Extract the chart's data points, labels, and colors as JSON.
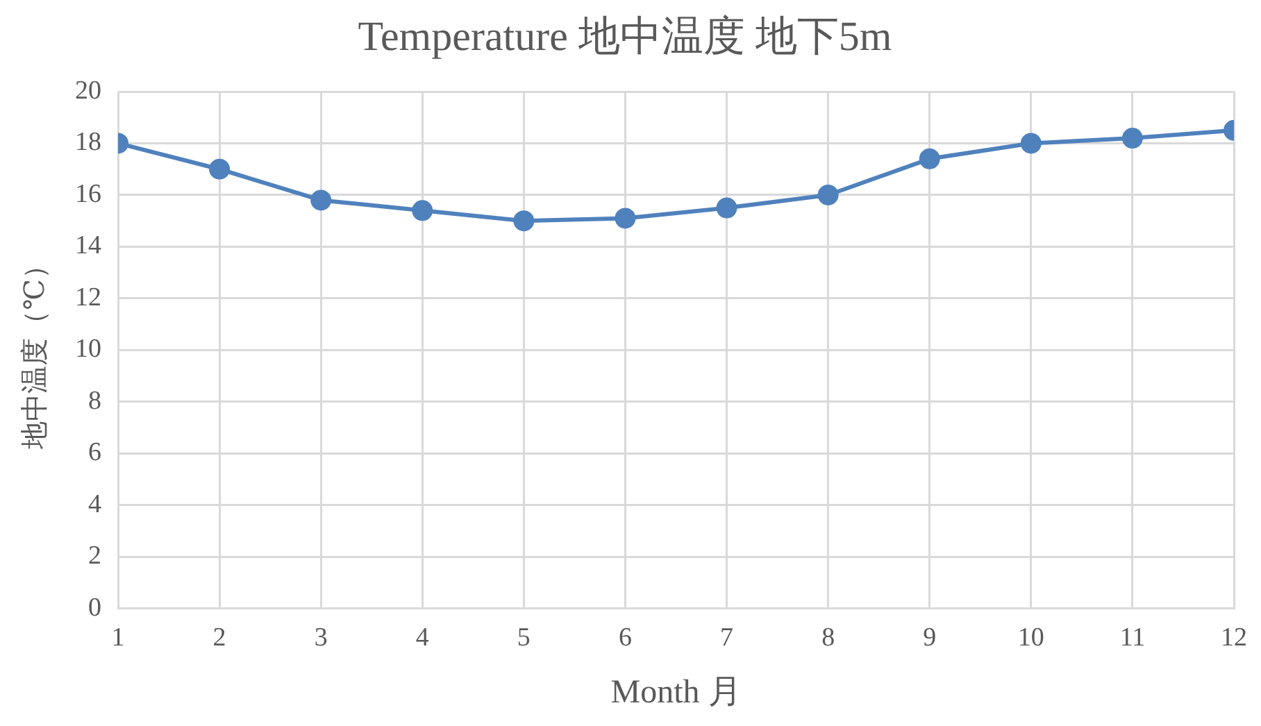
{
  "chart_data": {
    "type": "line",
    "title": "Temperature 地中温度 地下5m",
    "xlabel": "Month 月",
    "ylabel": "地中温度（℃）",
    "x": [
      1,
      2,
      3,
      4,
      5,
      6,
      7,
      8,
      9,
      10,
      11,
      12
    ],
    "series": [
      {
        "color": "#4f81bd",
        "values": [
          18,
          17,
          15.8,
          15.4,
          15.0,
          15.1,
          15.5,
          16.0,
          17.4,
          18.0,
          18.2,
          18.5
        ]
      }
    ],
    "xlim": [
      1,
      12
    ],
    "xticks": [
      1,
      2,
      3,
      4,
      5,
      6,
      7,
      8,
      9,
      10,
      11,
      12
    ],
    "ylim": [
      0,
      20
    ],
    "yticks": [
      0,
      2,
      4,
      6,
      8,
      10,
      12,
      14,
      16,
      18,
      20
    ],
    "grid": true,
    "legend": false,
    "marker": "circle",
    "line_style": "solid"
  }
}
